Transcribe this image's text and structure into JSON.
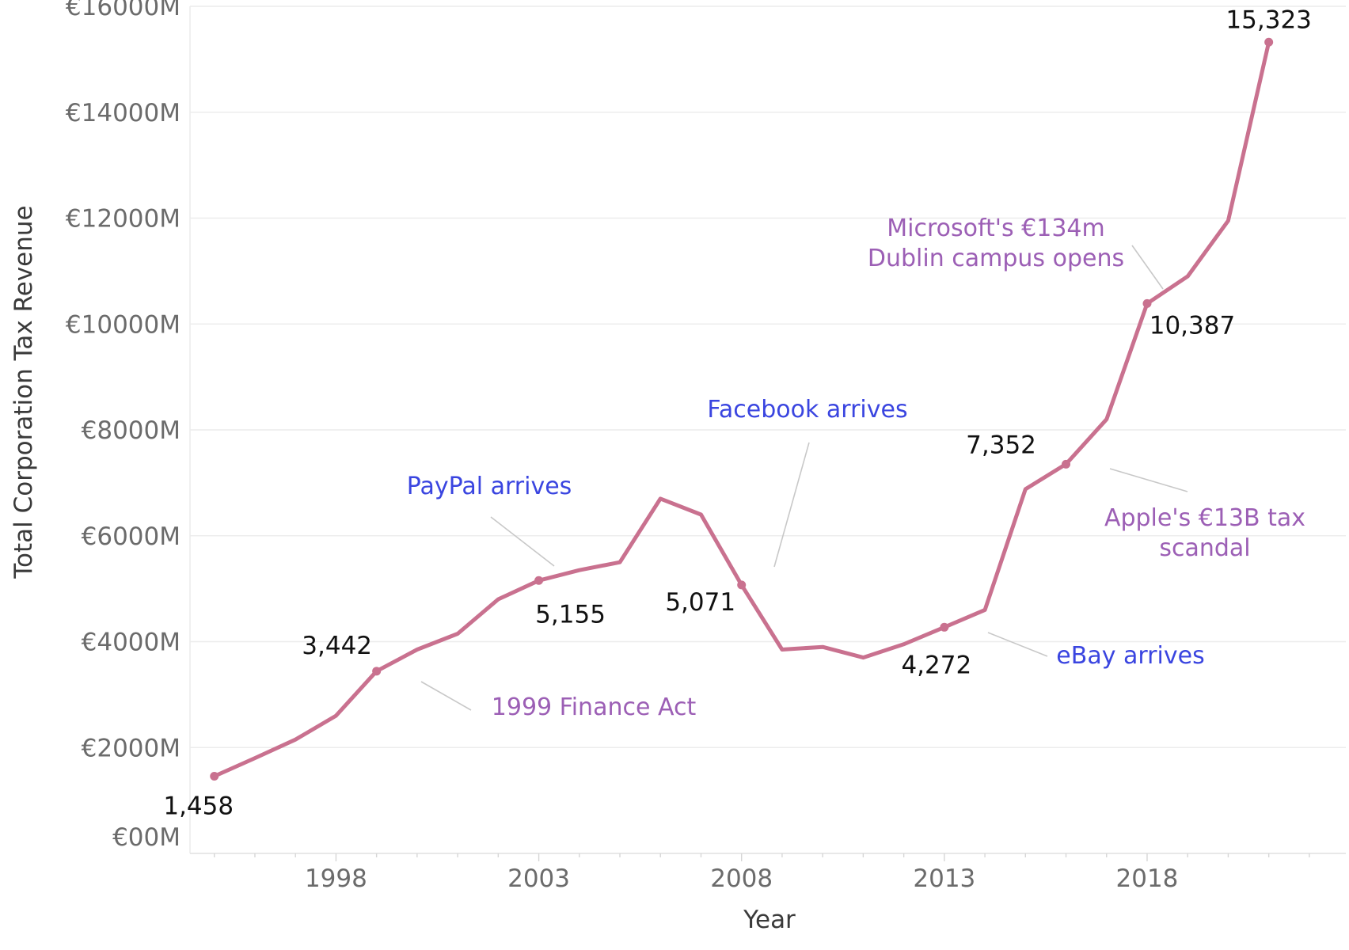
{
  "chart_data": {
    "type": "line",
    "title": "",
    "xlabel": "Year",
    "ylabel": "Total Corporation Tax Revenue",
    "x": [
      1995,
      1996,
      1997,
      1998,
      1999,
      2000,
      2001,
      2002,
      2003,
      2004,
      2005,
      2006,
      2007,
      2008,
      2009,
      2010,
      2011,
      2012,
      2013,
      2014,
      2015,
      2016,
      2017,
      2018,
      2019,
      2020,
      2021
    ],
    "series": [
      {
        "name": "",
        "color": "#c9718f",
        "values": [
          1458,
          1800,
          2150,
          2600,
          3442,
          3850,
          4150,
          4800,
          5155,
          5350,
          5500,
          6700,
          6400,
          5071,
          3850,
          3900,
          3700,
          3950,
          4272,
          4600,
          6880,
          7352,
          8200,
          10387,
          10900,
          11950,
          15323
        ]
      }
    ],
    "ylim": [
      0,
      16000
    ],
    "yticks": [
      {
        "value": 0,
        "label": "€00M"
      },
      {
        "value": 2000,
        "label": "€2000M"
      },
      {
        "value": 4000,
        "label": "€4000M"
      },
      {
        "value": 6000,
        "label": "€6000M"
      },
      {
        "value": 8000,
        "label": "€8000M"
      },
      {
        "value": 10000,
        "label": "€10000M"
      },
      {
        "value": 12000,
        "label": "€12000M"
      },
      {
        "value": 14000,
        "label": "€14000M"
      },
      {
        "value": 16000,
        "label": "€16000M"
      }
    ],
    "xticks": [
      {
        "value": 1998,
        "label": "1998"
      },
      {
        "value": 2003,
        "label": "2003"
      },
      {
        "value": 2008,
        "label": "2008"
      },
      {
        "value": 2013,
        "label": "2013"
      },
      {
        "value": 2018,
        "label": "2018"
      }
    ],
    "grid": true,
    "legend": "none",
    "data_labels": [
      {
        "x": 1995,
        "y": 1458,
        "label": "1,458",
        "side": "below"
      },
      {
        "x": 1999,
        "y": 3442,
        "label": "3,442",
        "side": "above"
      },
      {
        "x": 2003,
        "y": 5155,
        "label": "5,155",
        "side": "below"
      },
      {
        "x": 2008,
        "y": 5071,
        "label": "5,071",
        "side": "left"
      },
      {
        "x": 2013,
        "y": 4272,
        "label": "4,272",
        "side": "below"
      },
      {
        "x": 2016,
        "y": 7352,
        "label": "7,352",
        "side": "above"
      },
      {
        "x": 2018,
        "y": 10387,
        "label": "10,387",
        "side": "below"
      },
      {
        "x": 2021,
        "y": 15323,
        "label": "15,323",
        "side": "above"
      }
    ],
    "annotations": [
      {
        "x": 1999,
        "y": 3442,
        "lines": [
          "1999 Finance Act"
        ],
        "color": "#9c5fb5"
      },
      {
        "x": 2003,
        "y": 5155,
        "lines": [
          "PayPal arrives"
        ],
        "color": "#3a45e0"
      },
      {
        "x": 2008,
        "y": 5071,
        "lines": [
          "Facebook arrives"
        ],
        "color": "#3a45e0"
      },
      {
        "x": 2013,
        "y": 4272,
        "lines": [
          "eBay arrives"
        ],
        "color": "#3a45e0"
      },
      {
        "x": 2016,
        "y": 7352,
        "lines": [
          "Apple's €13B tax",
          "scandal"
        ],
        "color": "#9c5fb5"
      },
      {
        "x": 2018,
        "y": 10387,
        "lines": [
          "Microsoft's €134m",
          "Dublin campus opens"
        ],
        "color": "#9c5fb5"
      }
    ]
  }
}
